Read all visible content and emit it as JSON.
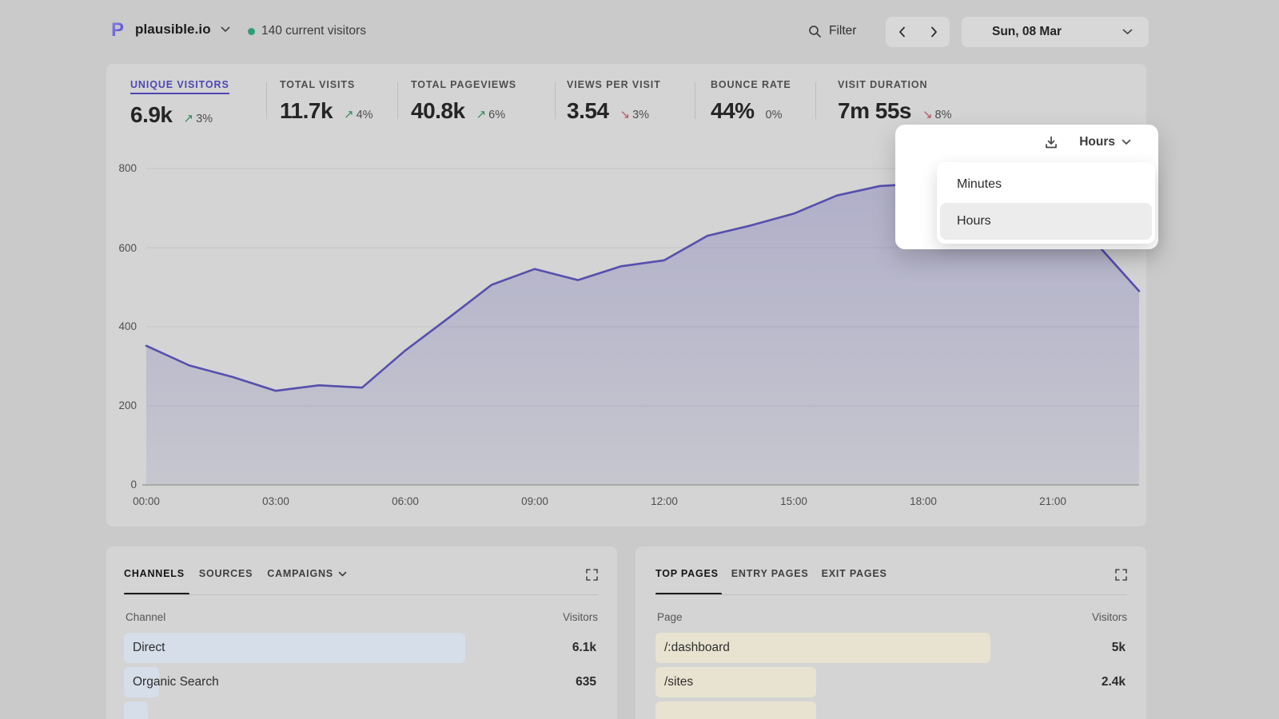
{
  "header": {
    "logo_letter": "P",
    "site": "plausible.io",
    "visitors": "140 current visitors",
    "filter_label": "Filter",
    "date_label": "Sun, 08 Mar"
  },
  "stats": {
    "items": [
      {
        "label": "UNIQUE VISITORS",
        "value": "6.9k",
        "arrow": "↗",
        "change": "3%",
        "dir": "up",
        "active": true
      },
      {
        "label": "TOTAL VISITS",
        "value": "11.7k",
        "arrow": "↗",
        "change": "4%",
        "dir": "up",
        "active": false
      },
      {
        "label": "TOTAL PAGEVIEWS",
        "value": "40.8k",
        "arrow": "↗",
        "change": "6%",
        "dir": "up",
        "active": false
      },
      {
        "label": "VIEWS PER VISIT",
        "value": "3.54",
        "arrow": "↘",
        "change": "3%",
        "dir": "down",
        "active": false
      },
      {
        "label": "BOUNCE RATE",
        "value": "44%",
        "arrow": "",
        "change": "0%",
        "dir": "flat",
        "active": false
      },
      {
        "label": "VISIT DURATION",
        "value": "7m 55s",
        "arrow": "↘",
        "change": "8%",
        "dir": "down",
        "active": false
      }
    ]
  },
  "popup": {
    "selected_label": "Hours",
    "options": [
      "Minutes",
      "Hours"
    ]
  },
  "chart_data": {
    "type": "area",
    "title": "Unique visitors by hour",
    "x": [
      "00:00",
      "01:00",
      "02:00",
      "03:00",
      "04:00",
      "05:00",
      "06:00",
      "07:00",
      "08:00",
      "09:00",
      "10:00",
      "11:00",
      "12:00",
      "13:00",
      "14:00",
      "15:00",
      "16:00",
      "17:00",
      "18:00",
      "19:00",
      "20:00",
      "21:00",
      "22:00",
      "23:00"
    ],
    "values": [
      352,
      302,
      273,
      238,
      252,
      246,
      340,
      422,
      506,
      546,
      518,
      553,
      568,
      630,
      656,
      686,
      732,
      756,
      762,
      768,
      745,
      688,
      612,
      490
    ],
    "xticks": [
      "00:00",
      "03:00",
      "06:00",
      "09:00",
      "12:00",
      "15:00",
      "18:00",
      "21:00"
    ],
    "ytick_labels": [
      "800",
      "600",
      "400",
      "200",
      "0"
    ],
    "yticks": [
      800,
      600,
      400,
      200,
      0
    ],
    "ylim": [
      0,
      800
    ],
    "grid": true,
    "line_color": "#564fae",
    "fill_color_top": "rgba(86,79,174,0.28)",
    "fill_color_bottom": "rgba(86,79,174,0.10)"
  },
  "channels": {
    "tabs": [
      {
        "label": "CHANNELS",
        "active": true
      },
      {
        "label": "SOURCES",
        "active": false
      },
      {
        "label": "CAMPAIGNS",
        "active": false
      }
    ],
    "col_left": "Channel",
    "col_right": "Visitors",
    "rows": [
      {
        "label": "Direct",
        "value": "6.1k",
        "bar_pct": 72
      },
      {
        "label": "Organic Search",
        "value": "635",
        "bar_pct": 7.5
      },
      {
        "label": "",
        "value": "",
        "bar_pct": 5
      }
    ]
  },
  "pages": {
    "tabs": [
      {
        "label": "TOP PAGES",
        "active": true
      },
      {
        "label": "ENTRY PAGES",
        "active": false
      },
      {
        "label": "EXIT PAGES",
        "active": false
      }
    ],
    "col_left": "Page",
    "col_right": "Visitors",
    "rows": [
      {
        "label": "/:dashboard",
        "value": "5k",
        "bar_pct": 71
      },
      {
        "label": "/sites",
        "value": "2.4k",
        "bar_pct": 34
      },
      {
        "label": "",
        "value": "",
        "bar_pct": 34
      }
    ]
  },
  "colors": {
    "accent": "#4f47b5",
    "line": "#564fae",
    "positive": "#35885f",
    "negative": "#b85364",
    "bar_blue": "#d6deea",
    "bar_beige": "#e8e3d0",
    "current_visitors_dot": "#2f9e78"
  }
}
